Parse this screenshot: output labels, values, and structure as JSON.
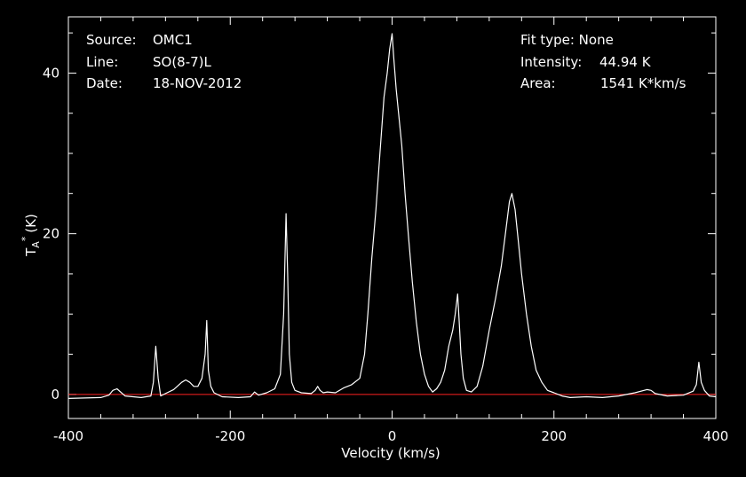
{
  "info": {
    "source_label": "Source:",
    "source_value": "OMC1",
    "line_label": "Line:",
    "line_value": "SO(8-7)L",
    "date_label": "Date:",
    "date_value": "18-NOV-2012",
    "fit_type": "Fit type: None",
    "intensity_label": "Intensity:",
    "intensity_value": "44.94 K",
    "area_label": "Area:",
    "area_value": "1541 K*km/s"
  },
  "colors": {
    "background": "#000000",
    "axes": "#ffffff",
    "spectrum": "#ffffff",
    "baseline": "#ff2020"
  },
  "chart_data": {
    "type": "line",
    "xlabel": "Velocity (km/s)",
    "ylabel_main": "T",
    "ylabel_sub": "A",
    "ylabel_sup": "*",
    "ylabel_unit": "(K)",
    "xlim": [
      -400,
      400
    ],
    "ylim": [
      -3,
      47
    ],
    "x_ticks": [
      -400,
      -200,
      0,
      200,
      400
    ],
    "y_ticks": [
      0,
      20,
      40
    ],
    "baseline_y": 0,
    "grid": false,
    "series": [
      {
        "x": [
          -400,
          -360,
          -350,
          -345,
          -340,
          -330,
          -310,
          -298,
          -295,
          -292,
          -289,
          -286,
          -280,
          -270,
          -260,
          -255,
          -250,
          -245,
          -240,
          -235,
          -231,
          -229,
          -227,
          -224,
          -220,
          -210,
          -190,
          -175,
          -170,
          -165,
          -155,
          -145,
          -138,
          -134,
          -131,
          -129,
          -127,
          -124,
          -120,
          -112,
          -100,
          -95,
          -92,
          -89,
          -85,
          -80,
          -70,
          -60,
          -50,
          -40,
          -34,
          -30,
          -25,
          -20,
          -15,
          -10,
          -6,
          -3,
          0,
          2,
          5,
          8,
          12,
          16,
          20,
          25,
          30,
          35,
          40,
          45,
          50,
          55,
          60,
          65,
          70,
          75,
          78,
          81,
          83,
          85,
          88,
          92,
          98,
          105,
          112,
          120,
          128,
          135,
          140,
          145,
          148,
          152,
          156,
          160,
          166,
          172,
          178,
          185,
          192,
          200,
          210,
          220,
          240,
          260,
          280,
          300,
          315,
          320,
          325,
          340,
          360,
          372,
          376,
          379,
          382,
          386,
          392,
          400
        ],
        "y": [
          -0.5,
          -0.4,
          -0.1,
          0.5,
          0.7,
          -0.2,
          -0.4,
          -0.2,
          1.5,
          6,
          2,
          -0.2,
          0.1,
          0.6,
          1.5,
          1.8,
          1.5,
          1.0,
          1.0,
          2.0,
          5,
          9.2,
          3,
          1.0,
          0.2,
          -0.3,
          -0.4,
          -0.3,
          0.3,
          -0.1,
          0.2,
          0.7,
          2.5,
          10,
          22.5,
          15,
          5,
          1.5,
          0.5,
          0.2,
          0.1,
          0.5,
          1.0,
          0.5,
          0.2,
          0.3,
          0.2,
          0.8,
          1.2,
          2.0,
          5,
          10,
          17,
          23,
          30,
          37,
          40,
          43,
          44.9,
          42,
          38,
          35,
          31,
          25,
          20,
          14,
          9,
          5,
          2.5,
          1.0,
          0.3,
          0.7,
          1.5,
          3,
          6,
          8,
          10,
          12.5,
          9,
          5,
          2,
          0.5,
          0.3,
          1,
          3.5,
          8,
          12,
          16,
          20,
          24,
          25,
          23,
          19,
          15,
          10,
          6,
          3,
          1.5,
          0.5,
          0.2,
          -0.2,
          -0.4,
          -0.3,
          -0.4,
          -0.2,
          0.2,
          0.6,
          0.5,
          0.1,
          -0.2,
          -0.1,
          0.4,
          1.2,
          4,
          1.5,
          0.5,
          -0.2,
          -0.3
        ]
      }
    ]
  }
}
